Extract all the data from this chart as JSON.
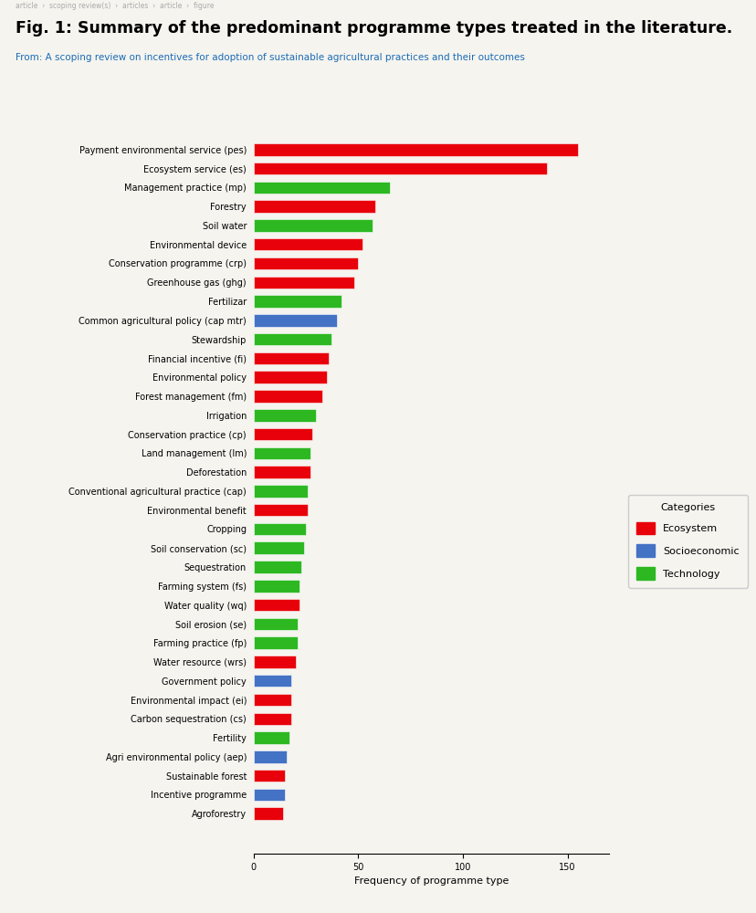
{
  "title": "Fig. 1: Summary of the predominant programme types treated in the literature.",
  "subtitle": "From: A scoping review on incentives for adoption of sustainable agricultural practices and their outcomes",
  "xlabel": "Frequency of programme type",
  "background_color": "#f5f4ef",
  "categories": [
    "Payment environmental service (pes)",
    "Ecosystem service (es)",
    "Management practice (mp)",
    "Forestry",
    "Soil water",
    "Environmental device",
    "Conservation programme (crp)",
    "Greenhouse gas (ghg)",
    "Fertilizar",
    "Common agricultural policy (cap mtr)",
    "Stewardship",
    "Financial incentive (fi)",
    "Environmental policy",
    "Forest management (fm)",
    "Irrigation",
    "Conservation practice (cp)",
    "Land management (lm)",
    "Deforestation",
    "Conventional agricultural practice (cap)",
    "Environmental benefit",
    "Cropping",
    "Soil conservation (sc)",
    "Sequestration",
    "Farming system (fs)",
    "Water quality (wq)",
    "Soil erosion (se)",
    "Farming practice (fp)",
    "Water resource (wrs)",
    "Government policy",
    "Environmental impact (ei)",
    "Carbon sequestration (cs)",
    "Fertility",
    "Agri environmental policy (aep)",
    "Sustainable forest",
    "Incentive programme",
    "Agroforestry"
  ],
  "values": [
    155,
    140,
    65,
    58,
    57,
    52,
    50,
    48,
    42,
    40,
    37,
    36,
    35,
    33,
    30,
    28,
    27,
    27,
    26,
    26,
    25,
    24,
    23,
    22,
    22,
    21,
    21,
    20,
    18,
    18,
    18,
    17,
    16,
    15,
    15,
    14
  ],
  "colors": [
    "#e8000b",
    "#e8000b",
    "#2db822",
    "#e8000b",
    "#2db822",
    "#e8000b",
    "#e8000b",
    "#e8000b",
    "#2db822",
    "#4472c4",
    "#2db822",
    "#e8000b",
    "#e8000b",
    "#e8000b",
    "#2db822",
    "#e8000b",
    "#2db822",
    "#e8000b",
    "#2db822",
    "#e8000b",
    "#2db822",
    "#2db822",
    "#2db822",
    "#2db822",
    "#e8000b",
    "#2db822",
    "#2db822",
    "#e8000b",
    "#4472c4",
    "#e8000b",
    "#e8000b",
    "#2db822",
    "#4472c4",
    "#e8000b",
    "#4472c4",
    "#e8000b"
  ],
  "legend_labels": [
    "Ecosystem",
    "Socioeconomic",
    "Technology"
  ],
  "legend_colors": [
    "#e8000b",
    "#4472c4",
    "#2db822"
  ],
  "title_fontsize": 12.5,
  "subtitle_fontsize": 7.5,
  "axis_fontsize": 8,
  "tick_fontsize": 7,
  "breadcrumb": "article  ›  scoping review(s)  ›  articles  ›  article  ›  figure",
  "breadcrumb_fontsize": 5.5
}
